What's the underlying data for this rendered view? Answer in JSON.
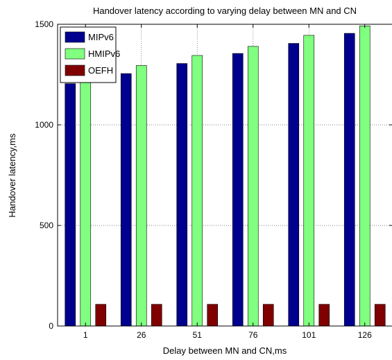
{
  "chart_data": {
    "type": "bar",
    "title": "Handover latency according to varying delay between MN and CN",
    "xlabel": "Delay between MN and CN,ms",
    "ylabel": "Handover latency,ms",
    "categories": [
      "1",
      "26",
      "51",
      "76",
      "101",
      "126"
    ],
    "ylim": [
      0,
      1500
    ],
    "yticks": [
      0,
      500,
      1000,
      1500
    ],
    "grid": true,
    "legend_position": "top-left",
    "series": [
      {
        "name": "MIPv6",
        "color": "#00008f",
        "values": [
          1205,
          1255,
          1305,
          1355,
          1405,
          1455
        ]
      },
      {
        "name": "HMIPv6",
        "color": "#80ff80",
        "values": [
          1245,
          1295,
          1345,
          1390,
          1445,
          1492
        ]
      },
      {
        "name": "OEFH",
        "color": "#800000",
        "values": [
          108,
          108,
          108,
          108,
          108,
          108
        ]
      }
    ]
  }
}
